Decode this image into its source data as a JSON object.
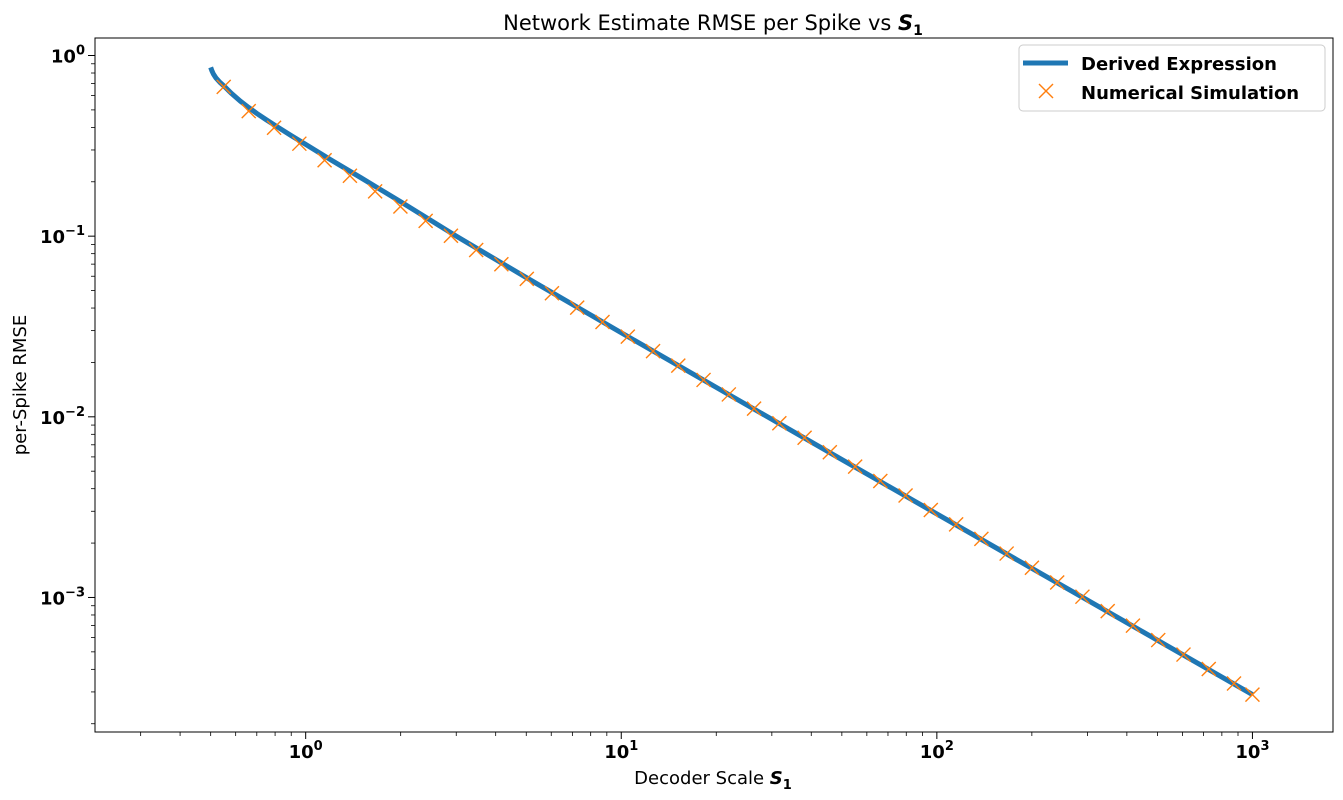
{
  "chart_data": {
    "type": "line",
    "title": "Network Estimate RMSE per Spike vs ",
    "title_symbol": "S",
    "title_subscript": "1",
    "xlabel": "Decoder Scale ",
    "xlabel_symbol": "S",
    "xlabel_subscript": "1",
    "ylabel": "per-Spike RMSE",
    "x_scale": "log",
    "y_scale": "log",
    "xlim": [
      0.215,
      1800
    ],
    "ylim": [
      0.00018,
      1.25
    ],
    "x_ticks": [
      {
        "value": 1,
        "base": "10",
        "exp": "0"
      },
      {
        "value": 10,
        "base": "10",
        "exp": "1"
      },
      {
        "value": 100,
        "base": "10",
        "exp": "2"
      },
      {
        "value": 1000,
        "base": "10",
        "exp": "3"
      }
    ],
    "y_ticks": [
      {
        "value": 1,
        "base": "10",
        "exp": "0"
      },
      {
        "value": 0.1,
        "base": "10",
        "exp": "−1"
      },
      {
        "value": 0.01,
        "base": "10",
        "exp": "−2"
      },
      {
        "value": 0.001,
        "base": "10",
        "exp": "−3"
      }
    ],
    "grid": false,
    "legend_position": "top-right",
    "series": [
      {
        "name": "Derived Expression",
        "style": "line",
        "color": "#1f77b4",
        "x": [
          0.5,
          0.505,
          0.51,
          0.52,
          0.535,
          0.55,
          0.58,
          0.62,
          0.66,
          0.7,
          0.75,
          0.8,
          0.9,
          1.0,
          1.2,
          1.5,
          2,
          3,
          5,
          10,
          20,
          50,
          100,
          200,
          500,
          1000
        ],
        "y": [
          0.86,
          0.82,
          0.79,
          0.75,
          0.71,
          0.68,
          0.62,
          0.56,
          0.515,
          0.478,
          0.441,
          0.41,
          0.36,
          0.322,
          0.265,
          0.21,
          0.155,
          0.1,
          0.059,
          0.0292,
          0.01455,
          0.0058,
          0.0029,
          0.00145,
          0.00058,
          0.00029
        ]
      },
      {
        "name": "Numerical Simulation",
        "style": "marker-x",
        "color": "#ff7f0e",
        "x": [
          0.55,
          0.66,
          0.794,
          0.955,
          1.148,
          1.381,
          1.66,
          1.996,
          2.4,
          2.886,
          3.47,
          4.17,
          5.02,
          6.03,
          7.25,
          8.72,
          10.49,
          12.61,
          15.16,
          18.23,
          21.92,
          26.35,
          31.69,
          38.1,
          45.8,
          55.1,
          66.2,
          79.6,
          95.7,
          115.1,
          138.4,
          166.4,
          200.1,
          240.6,
          289.3,
          347.8,
          418.2,
          502.9,
          604.7,
          727.1,
          874.2,
          1000
        ],
        "y": [
          0.67,
          0.492,
          0.398,
          0.325,
          0.263,
          0.216,
          0.177,
          0.146,
          0.1215,
          0.1005,
          0.0838,
          0.0699,
          0.058,
          0.0483,
          0.0402,
          0.0335,
          0.0278,
          0.0231,
          0.0192,
          0.016,
          0.0133,
          0.0111,
          0.00921,
          0.00766,
          0.00637,
          0.0053,
          0.00441,
          0.00367,
          0.00305,
          0.00254,
          0.00211,
          0.00175,
          0.00146,
          0.00121,
          0.00101,
          0.00084,
          0.000698,
          0.000581,
          0.000483,
          0.000402,
          0.000334,
          0.00029
        ]
      }
    ]
  }
}
